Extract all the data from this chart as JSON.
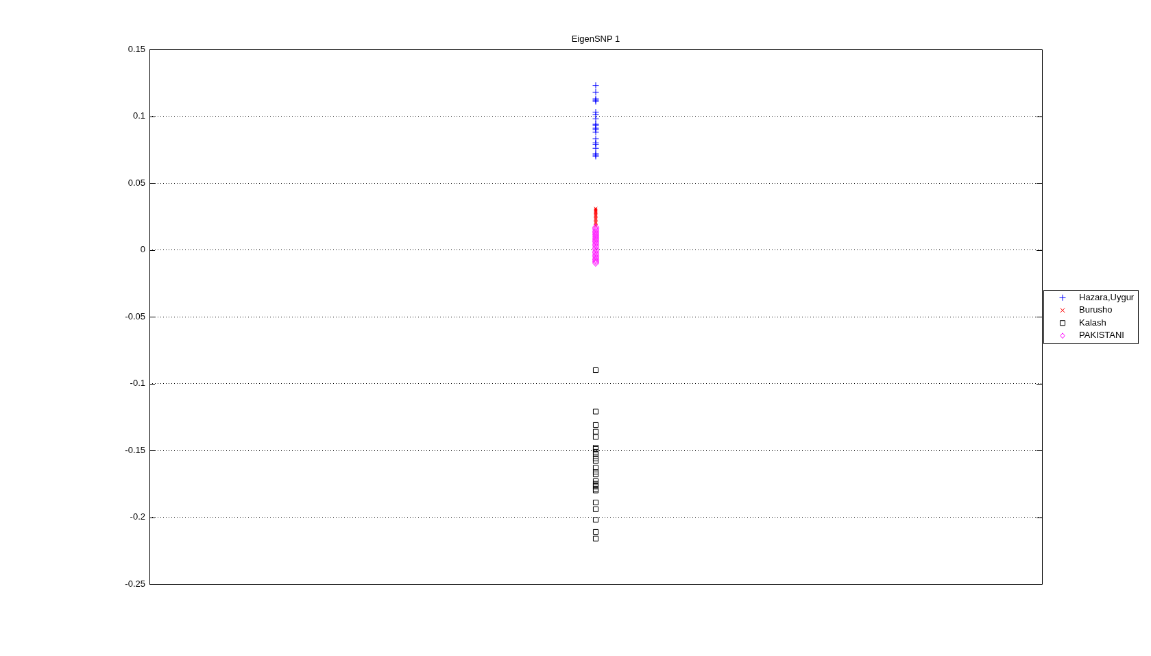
{
  "chart_data": {
    "type": "scatter",
    "title": "EigenSNP 1",
    "categories": [
      null
    ],
    "ylim": [
      -0.25,
      0.15
    ],
    "yticks": [
      -0.25,
      -0.2,
      -0.15,
      -0.1,
      -0.05,
      0,
      0.05,
      0.1,
      0.15
    ],
    "grid": "y",
    "legend": "right",
    "tick_labels": "y",
    "series": [
      {
        "name": "Hazara,Uygur",
        "color": "#0000ff",
        "marker": "plus",
        "x": [
          null,
          null,
          null,
          null,
          null,
          null,
          null,
          null,
          null,
          null,
          null,
          null,
          null,
          null,
          null,
          null,
          null,
          null,
          null,
          null
        ],
        "values": [
          0.123,
          0.118,
          0.113,
          0.112,
          0.111,
          0.103,
          0.101,
          0.098,
          0.094,
          0.093,
          0.091,
          0.09,
          0.088,
          0.083,
          0.08,
          0.079,
          0.076,
          0.072,
          0.071,
          0.07
        ]
      },
      {
        "name": "Burusho",
        "color": "#ff0000",
        "marker": "cross",
        "x": [
          null,
          null,
          null,
          null,
          null,
          null,
          null,
          null,
          null,
          null,
          null,
          null,
          null,
          null
        ],
        "values": [
          0.031,
          0.03,
          0.029,
          0.028,
          0.027,
          0.026,
          0.025,
          0.024,
          0.023,
          0.022,
          0.021,
          0.02,
          0.019,
          0.018
        ]
      },
      {
        "name": "Kalash",
        "color": "#000000",
        "marker": "square",
        "x": [
          null,
          null,
          null,
          null,
          null,
          null,
          null,
          null,
          null,
          null,
          null,
          null,
          null,
          null,
          null,
          null,
          null,
          null,
          null,
          null,
          null,
          null,
          null,
          null,
          null
        ],
        "values": [
          -0.09,
          -0.121,
          -0.131,
          -0.136,
          -0.14,
          -0.148,
          -0.149,
          -0.151,
          -0.153,
          -0.156,
          -0.158,
          -0.163,
          -0.166,
          -0.168,
          -0.173,
          -0.175,
          -0.176,
          -0.177,
          -0.179,
          -0.18,
          -0.189,
          -0.194,
          -0.202,
          -0.211,
          -0.216
        ]
      },
      {
        "name": "PAKISTANI",
        "color": "#ff00ff",
        "marker": "diamond",
        "x": [
          null,
          null,
          null,
          null,
          null,
          null,
          null,
          null,
          null,
          null,
          null,
          null,
          null,
          null,
          null,
          null,
          null,
          null,
          null,
          null,
          null,
          null,
          null,
          null,
          null,
          null,
          null,
          null
        ],
        "values": [
          0.017,
          0.016,
          0.015,
          0.014,
          0.013,
          0.012,
          0.011,
          0.01,
          0.009,
          0.008,
          0.007,
          0.006,
          0.005,
          0.004,
          0.003,
          0.002,
          0.001,
          0.0,
          -0.001,
          -0.002,
          -0.003,
          -0.004,
          -0.005,
          -0.006,
          -0.007,
          -0.008,
          -0.009,
          -0.01
        ]
      }
    ]
  }
}
